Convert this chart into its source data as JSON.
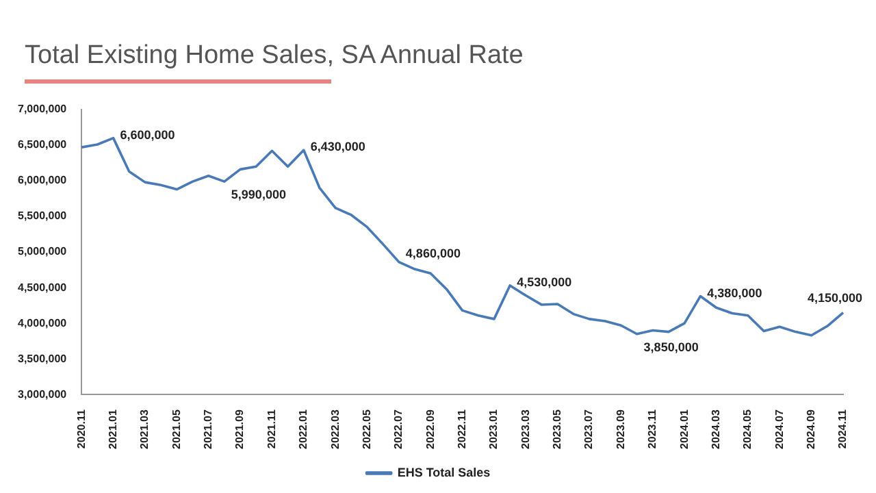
{
  "chart_data": {
    "type": "line",
    "title": "Total Existing Home Sales, SA Annual Rate",
    "categories": [
      "2020.11",
      null,
      "2021.01",
      null,
      "2021.03",
      null,
      "2021.05",
      null,
      "2021.07",
      null,
      "2021.09",
      null,
      "2021.11",
      null,
      "2022.01",
      null,
      "2022.03",
      null,
      "2022.05",
      null,
      "2022.07",
      null,
      "2022.09",
      null,
      "2022.11",
      null,
      "2023.01",
      null,
      "2023.03",
      null,
      "2023.05",
      null,
      "2023.07",
      null,
      "2023.09",
      null,
      "2023.11",
      null,
      "2024.01",
      null,
      "2024.03",
      null,
      "2024.05",
      null,
      "2024.07",
      null,
      "2024.09",
      null,
      "2024.11"
    ],
    "series": [
      {
        "name": "EHS Total Sales",
        "color": "#4a7ab5",
        "values": [
          6470000,
          6510000,
          6600000,
          6130000,
          5980000,
          5940000,
          5880000,
          5990000,
          6070000,
          5990000,
          6160000,
          6200000,
          6420000,
          6200000,
          6430000,
          5900000,
          5620000,
          5520000,
          5350000,
          5110000,
          4860000,
          4760000,
          4700000,
          4480000,
          4180000,
          4110000,
          4060000,
          4530000,
          4390000,
          4260000,
          4270000,
          4130000,
          4060000,
          4030000,
          3970000,
          3850000,
          3900000,
          3880000,
          4000000,
          4380000,
          4220000,
          4140000,
          4110000,
          3890000,
          3950000,
          3880000,
          3830000,
          3960000,
          4150000
        ],
        "value_labels": [
          null,
          null,
          "6,600,000",
          null,
          null,
          null,
          null,
          null,
          null,
          "5,990,000",
          null,
          null,
          null,
          null,
          "6,430,000",
          null,
          null,
          null,
          null,
          null,
          "4,860,000",
          null,
          null,
          null,
          null,
          null,
          null,
          "4,530,000",
          null,
          null,
          null,
          null,
          null,
          null,
          null,
          "3,850,000",
          null,
          null,
          null,
          "4,380,000",
          null,
          null,
          null,
          null,
          null,
          null,
          null,
          null,
          "4,150,000"
        ]
      }
    ],
    "ylim": [
      3000000,
      7000000
    ],
    "yticks": [
      {
        "value": 3000000,
        "label": "3,000,000"
      },
      {
        "value": 3500000,
        "label": "3,500,000"
      },
      {
        "value": 4000000,
        "label": "4,000,000"
      },
      {
        "value": 4500000,
        "label": "4,500,000"
      },
      {
        "value": 5000000,
        "label": "5,000,000"
      },
      {
        "value": 5500000,
        "label": "5,500,000"
      },
      {
        "value": 6000000,
        "label": "6,000,000"
      },
      {
        "value": 6500000,
        "label": "6,500,000"
      },
      {
        "value": 7000000,
        "label": "7,000,000"
      }
    ],
    "grid": false,
    "legend": "bottom",
    "marker": "none",
    "line_style": "solid"
  }
}
